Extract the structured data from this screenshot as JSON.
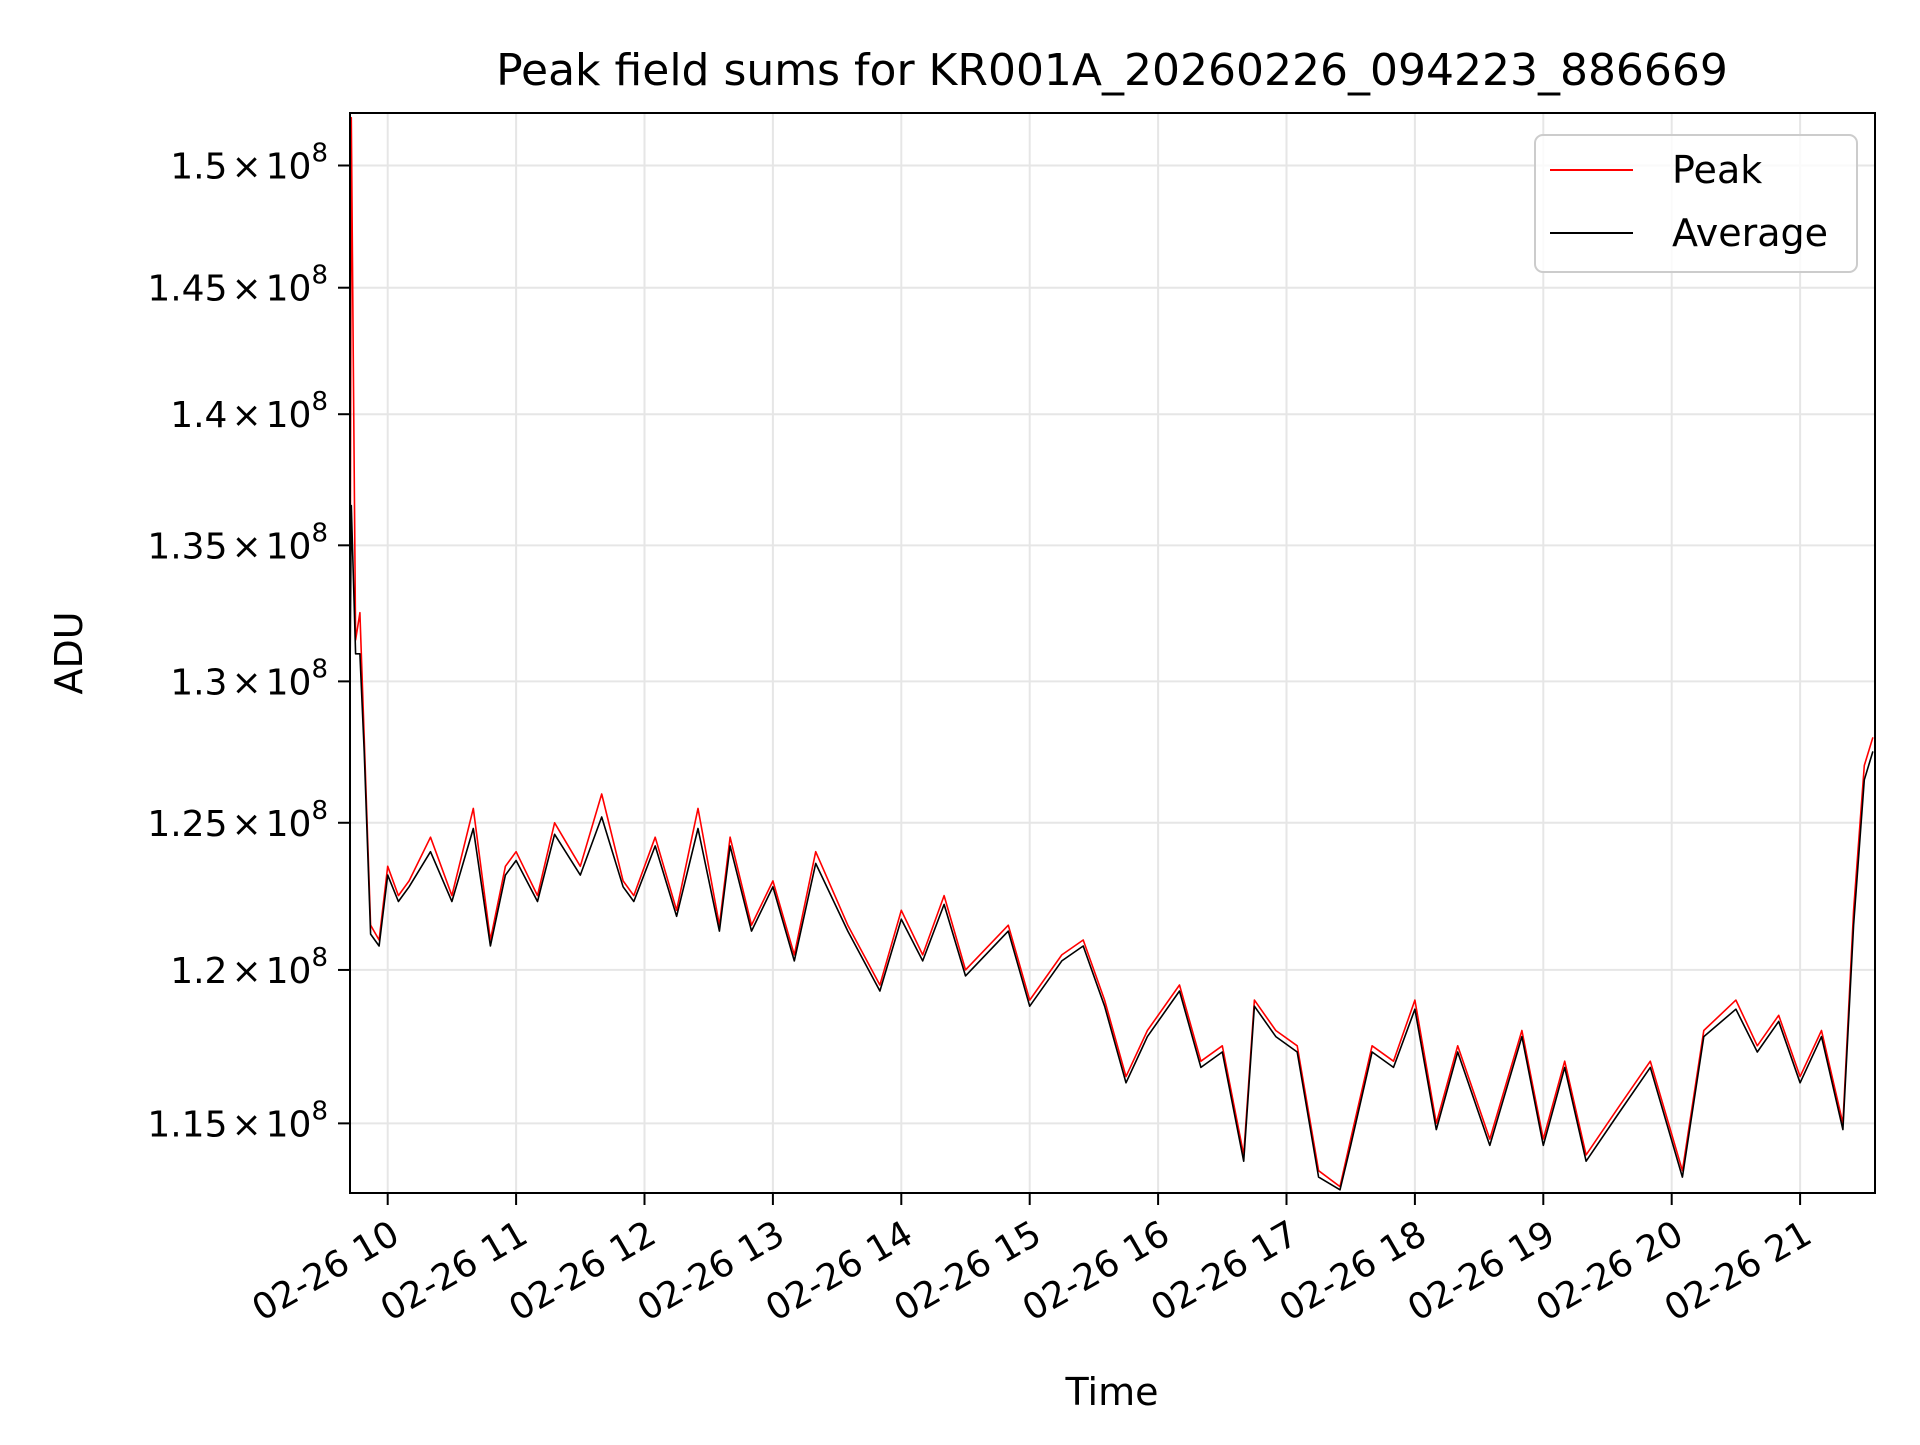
{
  "chart_data": {
    "type": "line",
    "title": "Peak field sums for KR001A_20260226_094223_886669",
    "xlabel": "Time",
    "ylabel": "ADU",
    "y_scale": "log",
    "xlim": [
      "2026-02-26T09:42:23",
      "2026-02-26T21:35:00"
    ],
    "ylim": [
      112800000,
      152200000
    ],
    "x_ticks": [
      "2026-02-26T10:00:00",
      "2026-02-26T11:00:00",
      "2026-02-26T12:00:00",
      "2026-02-26T13:00:00",
      "2026-02-26T14:00:00",
      "2026-02-26T15:00:00",
      "2026-02-26T16:00:00",
      "2026-02-26T17:00:00",
      "2026-02-26T18:00:00",
      "2026-02-26T19:00:00",
      "2026-02-26T20:00:00",
      "2026-02-26T21:00:00"
    ],
    "x_tick_labels": [
      "02-26 10",
      "02-26 11",
      "02-26 12",
      "02-26 13",
      "02-26 14",
      "02-26 15",
      "02-26 16",
      "02-26 17",
      "02-26 18",
      "02-26 19",
      "02-26 20",
      "02-26 21"
    ],
    "y_ticks": [
      115000000,
      120000000,
      125000000,
      130000000,
      135000000,
      140000000,
      145000000,
      150000000
    ],
    "y_tick_labels": [
      {
        "mantissa": "1.15",
        "times": "×",
        "base": "10",
        "exp": "8"
      },
      {
        "mantissa": "1.2",
        "times": "×",
        "base": "10",
        "exp": "8"
      },
      {
        "mantissa": "1.25",
        "times": "×",
        "base": "10",
        "exp": "8"
      },
      {
        "mantissa": "1.3",
        "times": "×",
        "base": "10",
        "exp": "8"
      },
      {
        "mantissa": "1.35",
        "times": "×",
        "base": "10",
        "exp": "8"
      },
      {
        "mantissa": "1.4",
        "times": "×",
        "base": "10",
        "exp": "8"
      },
      {
        "mantissa": "1.45",
        "times": "×",
        "base": "10",
        "exp": "8"
      },
      {
        "mantissa": "1.5",
        "times": "×",
        "base": "10",
        "exp": "8"
      }
    ],
    "grid": true,
    "legend": {
      "position": "top-right"
    },
    "series": [
      {
        "name": "Peak",
        "color": "#ff0000",
        "x": [
          "2026-02-26T09:42:23",
          "2026-02-26T09:43:00",
          "2026-02-26T09:45:00",
          "2026-02-26T09:47:00",
          "2026-02-26T09:49:00",
          "2026-02-26T09:52:00",
          "2026-02-26T09:56:00",
          "2026-02-26T10:00:00",
          "2026-02-26T10:05:00",
          "2026-02-26T10:10:00",
          "2026-02-26T10:20:00",
          "2026-02-26T10:30:00",
          "2026-02-26T10:40:00",
          "2026-02-26T10:48:00",
          "2026-02-26T10:55:00",
          "2026-02-26T11:00:00",
          "2026-02-26T11:10:00",
          "2026-02-26T11:18:00",
          "2026-02-26T11:30:00",
          "2026-02-26T11:40:00",
          "2026-02-26T11:50:00",
          "2026-02-26T11:55:00",
          "2026-02-26T12:05:00",
          "2026-02-26T12:15:00",
          "2026-02-26T12:25:00",
          "2026-02-26T12:35:00",
          "2026-02-26T12:40:00",
          "2026-02-26T12:50:00",
          "2026-02-26T13:00:00",
          "2026-02-26T13:10:00",
          "2026-02-26T13:20:00",
          "2026-02-26T13:35:00",
          "2026-02-26T13:50:00",
          "2026-02-26T14:00:00",
          "2026-02-26T14:10:00",
          "2026-02-26T14:20:00",
          "2026-02-26T14:30:00",
          "2026-02-26T14:50:00",
          "2026-02-26T15:00:00",
          "2026-02-26T15:15:00",
          "2026-02-26T15:25:00",
          "2026-02-26T15:35:00",
          "2026-02-26T15:45:00",
          "2026-02-26T15:55:00",
          "2026-02-26T16:10:00",
          "2026-02-26T16:20:00",
          "2026-02-26T16:30:00",
          "2026-02-26T16:40:00",
          "2026-02-26T16:45:00",
          "2026-02-26T16:55:00",
          "2026-02-26T17:05:00",
          "2026-02-26T17:15:00",
          "2026-02-26T17:25:00",
          "2026-02-26T17:30:00",
          "2026-02-26T17:40:00",
          "2026-02-26T17:50:00",
          "2026-02-26T18:00:00",
          "2026-02-26T18:10:00",
          "2026-02-26T18:20:00",
          "2026-02-26T18:35:00",
          "2026-02-26T18:50:00",
          "2026-02-26T19:00:00",
          "2026-02-26T19:10:00",
          "2026-02-26T19:20:00",
          "2026-02-26T19:35:00",
          "2026-02-26T19:50:00",
          "2026-02-26T20:05:00",
          "2026-02-26T20:15:00",
          "2026-02-26T20:30:00",
          "2026-02-26T20:40:00",
          "2026-02-26T20:50:00",
          "2026-02-26T21:00:00",
          "2026-02-26T21:10:00",
          "2026-02-26T21:20:00",
          "2026-02-26T21:25:00",
          "2026-02-26T21:30:00",
          "2026-02-26T21:34:00"
        ],
        "values": [
          130000000,
          152000000,
          131500000,
          132500000,
          128000000,
          121500000,
          121000000,
          123500000,
          122500000,
          123000000,
          124500000,
          122500000,
          125500000,
          121000000,
          123500000,
          124000000,
          122500000,
          125000000,
          123500000,
          126000000,
          123000000,
          122500000,
          124500000,
          122000000,
          125500000,
          121500000,
          124500000,
          121500000,
          123000000,
          120500000,
          124000000,
          121500000,
          119500000,
          122000000,
          120500000,
          122500000,
          120000000,
          121500000,
          119000000,
          120500000,
          121000000,
          119000000,
          116500000,
          118000000,
          119500000,
          117000000,
          117500000,
          114000000,
          119000000,
          118000000,
          117500000,
          113500000,
          113000000,
          114500000,
          117500000,
          117000000,
          119000000,
          115000000,
          117500000,
          114500000,
          118000000,
          114500000,
          117000000,
          114000000,
          115500000,
          117000000,
          113500000,
          118000000,
          119000000,
          117500000,
          118500000,
          116500000,
          118000000,
          115000000,
          122000000,
          127000000,
          128000000
        ]
      },
      {
        "name": "Average",
        "color": "#000000",
        "x": [
          "2026-02-26T09:42:23",
          "2026-02-26T09:43:00",
          "2026-02-26T09:45:00",
          "2026-02-26T09:47:00",
          "2026-02-26T09:49:00",
          "2026-02-26T09:52:00",
          "2026-02-26T09:56:00",
          "2026-02-26T10:00:00",
          "2026-02-26T10:05:00",
          "2026-02-26T10:10:00",
          "2026-02-26T10:20:00",
          "2026-02-26T10:30:00",
          "2026-02-26T10:40:00",
          "2026-02-26T10:48:00",
          "2026-02-26T10:55:00",
          "2026-02-26T11:00:00",
          "2026-02-26T11:10:00",
          "2026-02-26T11:18:00",
          "2026-02-26T11:30:00",
          "2026-02-26T11:40:00",
          "2026-02-26T11:50:00",
          "2026-02-26T11:55:00",
          "2026-02-26T12:05:00",
          "2026-02-26T12:15:00",
          "2026-02-26T12:25:00",
          "2026-02-26T12:35:00",
          "2026-02-26T12:40:00",
          "2026-02-26T12:50:00",
          "2026-02-26T13:00:00",
          "2026-02-26T13:10:00",
          "2026-02-26T13:20:00",
          "2026-02-26T13:35:00",
          "2026-02-26T13:50:00",
          "2026-02-26T14:00:00",
          "2026-02-26T14:10:00",
          "2026-02-26T14:20:00",
          "2026-02-26T14:30:00",
          "2026-02-26T14:50:00",
          "2026-02-26T15:00:00",
          "2026-02-26T15:15:00",
          "2026-02-26T15:25:00",
          "2026-02-26T15:35:00",
          "2026-02-26T15:45:00",
          "2026-02-26T15:55:00",
          "2026-02-26T16:10:00",
          "2026-02-26T16:20:00",
          "2026-02-26T16:30:00",
          "2026-02-26T16:40:00",
          "2026-02-26T16:45:00",
          "2026-02-26T16:55:00",
          "2026-02-26T17:05:00",
          "2026-02-26T17:15:00",
          "2026-02-26T17:25:00",
          "2026-02-26T17:30:00",
          "2026-02-26T17:40:00",
          "2026-02-26T17:50:00",
          "2026-02-26T18:00:00",
          "2026-02-26T18:10:00",
          "2026-02-26T18:20:00",
          "2026-02-26T18:35:00",
          "2026-02-26T18:50:00",
          "2026-02-26T19:00:00",
          "2026-02-26T19:10:00",
          "2026-02-26T19:20:00",
          "2026-02-26T19:35:00",
          "2026-02-26T19:50:00",
          "2026-02-26T20:05:00",
          "2026-02-26T20:15:00",
          "2026-02-26T20:30:00",
          "2026-02-26T20:40:00",
          "2026-02-26T20:50:00",
          "2026-02-26T21:00:00",
          "2026-02-26T21:10:00",
          "2026-02-26T21:20:00",
          "2026-02-26T21:25:00",
          "2026-02-26T21:30:00",
          "2026-02-26T21:34:00"
        ],
        "values": [
          130000000,
          136500000,
          131000000,
          131000000,
          127500000,
          121200000,
          120800000,
          123200000,
          122300000,
          122800000,
          124000000,
          122300000,
          124800000,
          120800000,
          123200000,
          123700000,
          122300000,
          124600000,
          123200000,
          125200000,
          122800000,
          122300000,
          124200000,
          121800000,
          124800000,
          121300000,
          124200000,
          121300000,
          122800000,
          120300000,
          123600000,
          121300000,
          119300000,
          121700000,
          120300000,
          122200000,
          119800000,
          121300000,
          118800000,
          120300000,
          120800000,
          118800000,
          116300000,
          117800000,
          119300000,
          116800000,
          117300000,
          113800000,
          118800000,
          117800000,
          117300000,
          113300000,
          112900000,
          114300000,
          117300000,
          116800000,
          118700000,
          114800000,
          117300000,
          114300000,
          117800000,
          114300000,
          116800000,
          113800000,
          115300000,
          116800000,
          113300000,
          117800000,
          118700000,
          117300000,
          118300000,
          116300000,
          117800000,
          114800000,
          121500000,
          126500000,
          127500000
        ]
      }
    ]
  }
}
